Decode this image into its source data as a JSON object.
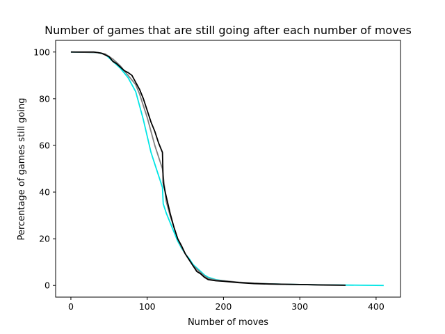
{
  "chart_data": {
    "type": "line",
    "title": "Number of games that are still going after each number of moves",
    "xlabel": "Number of moves",
    "ylabel": "Percentage of games still going",
    "xlim": [
      -20,
      432
    ],
    "ylim": [
      -5,
      105
    ],
    "xticks": [
      0,
      100,
      200,
      300,
      400
    ],
    "yticks": [
      0,
      20,
      40,
      60,
      80,
      100
    ],
    "grid": false,
    "legend": "none",
    "series": [
      {
        "color": "#00e5e5",
        "points": [
          [
            0,
            100
          ],
          [
            35,
            99.8
          ],
          [
            45,
            99
          ],
          [
            55,
            96
          ],
          [
            65,
            93
          ],
          [
            75,
            89
          ],
          [
            85,
            83
          ],
          [
            90,
            77
          ],
          [
            95,
            71
          ],
          [
            100,
            64
          ],
          [
            105,
            57
          ],
          [
            110,
            52
          ],
          [
            115,
            47
          ],
          [
            120,
            42
          ],
          [
            121,
            35
          ],
          [
            125,
            31
          ],
          [
            130,
            27
          ],
          [
            135,
            23
          ],
          [
            140,
            19
          ],
          [
            145,
            16
          ],
          [
            150,
            13.5
          ],
          [
            155,
            11.5
          ],
          [
            160,
            9
          ],
          [
            165,
            7.5
          ],
          [
            170,
            6
          ],
          [
            175,
            4.5
          ],
          [
            180,
            3.5
          ],
          [
            190,
            2.5
          ],
          [
            200,
            2
          ],
          [
            210,
            1.6
          ],
          [
            220,
            1.3
          ],
          [
            240,
            0.9
          ],
          [
            260,
            0.7
          ],
          [
            280,
            0.5
          ],
          [
            300,
            0.4
          ],
          [
            320,
            0.3
          ],
          [
            350,
            0.2
          ],
          [
            380,
            0.1
          ],
          [
            410,
            0
          ]
        ]
      },
      {
        "color": "#7f7f7f",
        "points": [
          [
            0,
            100
          ],
          [
            35,
            99.8
          ],
          [
            45,
            99.2
          ],
          [
            55,
            97
          ],
          [
            65,
            94
          ],
          [
            75,
            90
          ],
          [
            85,
            86
          ],
          [
            90,
            82
          ],
          [
            95,
            77
          ],
          [
            100,
            72
          ],
          [
            105,
            66
          ],
          [
            110,
            60
          ],
          [
            115,
            55
          ],
          [
            120,
            50
          ],
          [
            122,
            44
          ],
          [
            125,
            36
          ],
          [
            130,
            30
          ],
          [
            135,
            25
          ],
          [
            140,
            20
          ],
          [
            145,
            16.5
          ],
          [
            150,
            13.5
          ],
          [
            155,
            11
          ],
          [
            160,
            8.5
          ],
          [
            165,
            7
          ],
          [
            170,
            5.5
          ],
          [
            175,
            4
          ],
          [
            180,
            3
          ],
          [
            190,
            2.3
          ],
          [
            200,
            2
          ],
          [
            220,
            1.4
          ],
          [
            240,
            1
          ],
          [
            260,
            0.7
          ],
          [
            280,
            0.5
          ],
          [
            300,
            0.4
          ],
          [
            330,
            0.2
          ],
          [
            360,
            0.1
          ]
        ]
      },
      {
        "color": "#000000",
        "points": [
          [
            0,
            100
          ],
          [
            30,
            100
          ],
          [
            40,
            99.5
          ],
          [
            50,
            98
          ],
          [
            55,
            96
          ],
          [
            60,
            95
          ],
          [
            65,
            93.5
          ],
          [
            70,
            92
          ],
          [
            75,
            91.2
          ],
          [
            80,
            90
          ],
          [
            85,
            87
          ],
          [
            90,
            84
          ],
          [
            95,
            80
          ],
          [
            100,
            75
          ],
          [
            105,
            70
          ],
          [
            110,
            66
          ],
          [
            115,
            61
          ],
          [
            120,
            57
          ],
          [
            121,
            44
          ],
          [
            125,
            38
          ],
          [
            130,
            31
          ],
          [
            135,
            25
          ],
          [
            140,
            20
          ],
          [
            145,
            17
          ],
          [
            150,
            13.5
          ],
          [
            155,
            11
          ],
          [
            160,
            8.5
          ],
          [
            165,
            6
          ],
          [
            170,
            5
          ],
          [
            175,
            3.5
          ],
          [
            180,
            2.5
          ],
          [
            190,
            2
          ],
          [
            200,
            1.8
          ],
          [
            210,
            1.5
          ],
          [
            220,
            1.2
          ],
          [
            240,
            0.8
          ],
          [
            260,
            0.6
          ],
          [
            280,
            0.5
          ],
          [
            300,
            0.4
          ],
          [
            330,
            0.2
          ],
          [
            360,
            0.1
          ]
        ]
      }
    ]
  }
}
